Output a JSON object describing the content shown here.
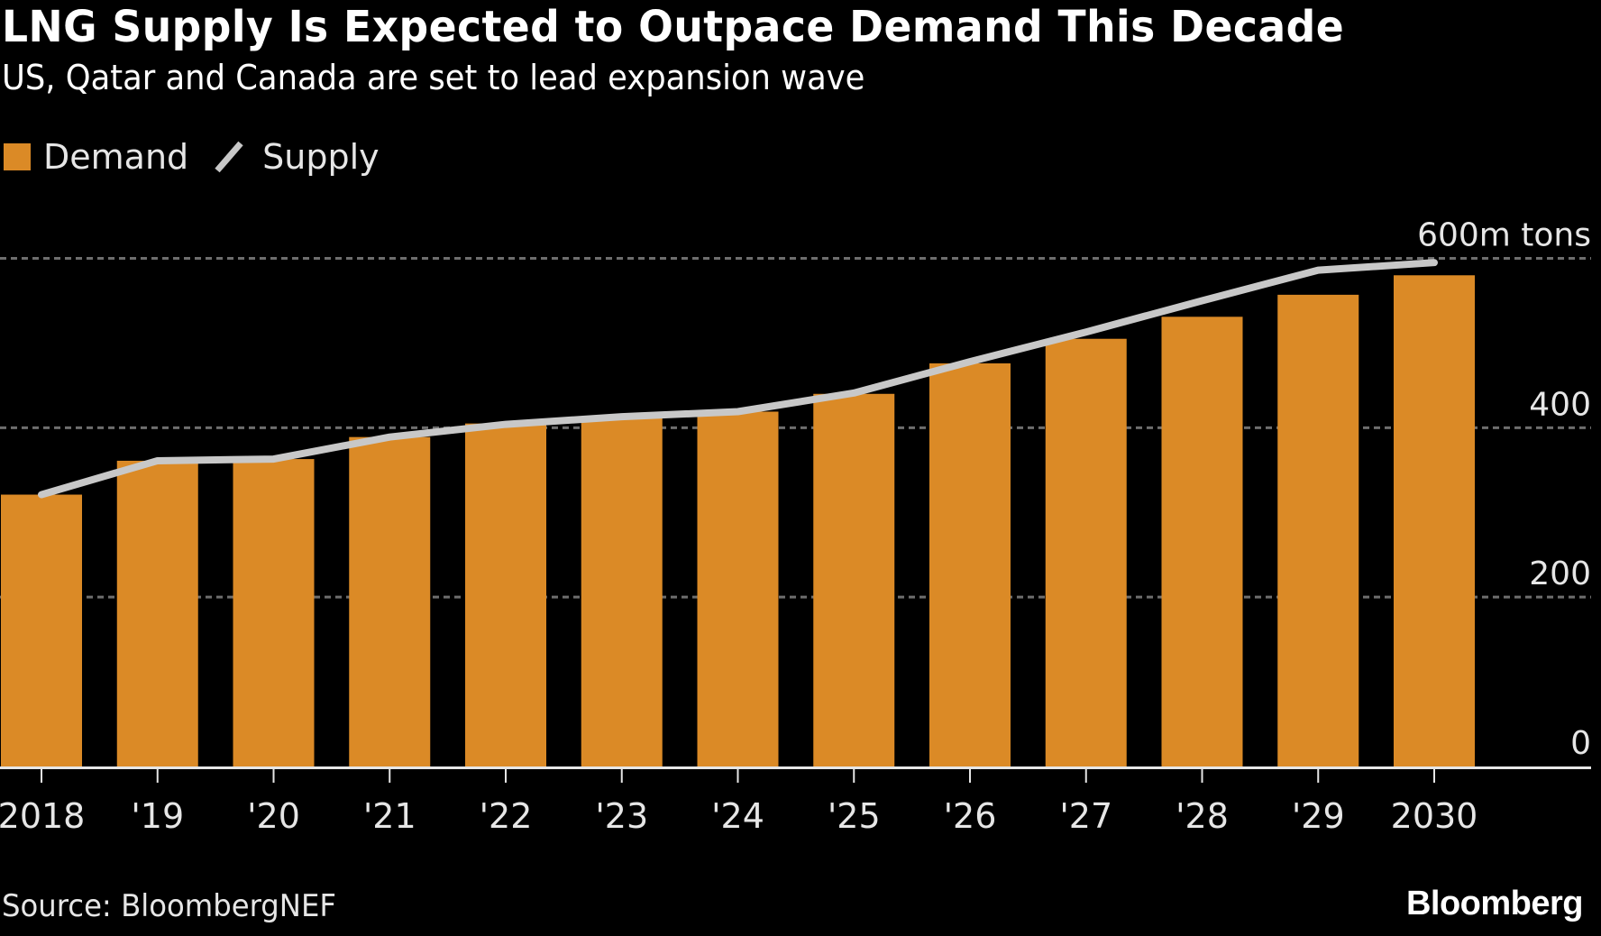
{
  "header": {
    "title": "LNG Supply Is Expected to Outpace Demand This Decade",
    "subtitle": "US, Qatar and Canada are set to lead expansion wave"
  },
  "legend": [
    {
      "label": "Demand",
      "kind": "bar",
      "color": "#DB8A26"
    },
    {
      "label": "Supply",
      "kind": "line",
      "color": "#C8C8C8"
    }
  ],
  "footer": {
    "source": "Source: BloombergNEF",
    "brand": "Bloomberg"
  },
  "colors": {
    "background": "#000000",
    "demand": "#DB8A26",
    "supply": "#C8C8C8",
    "grid": "#6E6E6E",
    "axis": "#E6E6E6"
  },
  "chart_data": {
    "type": "bar",
    "title": "LNG Supply Is Expected to Outpace Demand This Decade",
    "subtitle": "US, Qatar and Canada are set to lead expansion wave",
    "xlabel": "",
    "ylabel": "m tons",
    "unit_label": "600m tons",
    "categories": [
      "2018",
      "'19",
      "'20",
      "'21",
      "'22",
      "'23",
      "'24",
      "'25",
      "'26",
      "'27",
      "'28",
      "'29",
      "2030"
    ],
    "series": [
      {
        "name": "Demand",
        "type": "bar",
        "values": [
          321,
          361,
          363,
          389,
          405,
          412,
          419,
          440,
          476,
          505,
          531,
          557,
          580
        ]
      },
      {
        "name": "Supply",
        "type": "line",
        "values": [
          321,
          361,
          363,
          389,
          404,
          413,
          419,
          441,
          478,
          513,
          550,
          586,
          595
        ]
      }
    ],
    "ylim": [
      0,
      600
    ],
    "yticks": [
      0,
      200,
      400,
      600
    ],
    "ytick_labels": [
      "0",
      "200",
      "400",
      "600m tons"
    ],
    "grid": true,
    "legend_position": "top-left",
    "y_axis_side": "right"
  }
}
